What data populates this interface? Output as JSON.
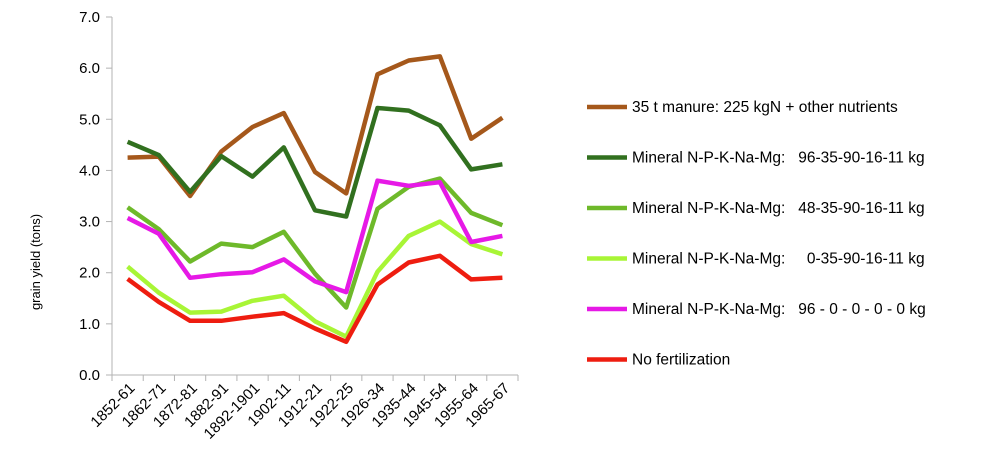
{
  "chart_data": {
    "type": "line",
    "title": "",
    "xlabel": "",
    "ylabel": "grain yield (tons)",
    "ylim": [
      0,
      7
    ],
    "yticks": [
      "0.0",
      "1.0",
      "2.0",
      "3.0",
      "4.0",
      "5.0",
      "6.0",
      "7.0"
    ],
    "grid": false,
    "legend_position": "right",
    "categories": [
      "1852-61",
      "1862-71",
      "1872-81",
      "1882-91",
      "1892-1901",
      "1902-11",
      "1912-21",
      "1922-25",
      "1926-34",
      "1935-44",
      "1945-54",
      "1955-64",
      "1965-67"
    ],
    "series": [
      {
        "name": "35 t manure: 225 kgN + other nutrients",
        "color": "#a5581b",
        "values": [
          4.25,
          4.27,
          3.5,
          4.37,
          4.85,
          5.12,
          3.97,
          3.55,
          5.88,
          6.15,
          6.23,
          4.62,
          5.03
        ]
      },
      {
        "name": "Mineral N-P-K-Na-Mg:   96-35-90-16-11 kg",
        "color": "#31701f",
        "values": [
          4.56,
          4.3,
          3.58,
          4.28,
          3.88,
          4.45,
          3.22,
          3.1,
          5.22,
          5.17,
          4.88,
          4.02,
          4.12
        ]
      },
      {
        "name": "Mineral N-P-K-Na-Mg:   48-35-90-16-11 kg",
        "color": "#6eb92a",
        "values": [
          3.28,
          2.85,
          2.22,
          2.57,
          2.5,
          2.8,
          1.98,
          1.32,
          3.25,
          3.68,
          3.84,
          3.17,
          2.93
        ]
      },
      {
        "name": "Mineral N-P-K-Na-Mg:     0-35-90-16-11 kg",
        "color": "#a8f536",
        "values": [
          2.12,
          1.61,
          1.22,
          1.24,
          1.45,
          1.55,
          1.05,
          0.75,
          2.02,
          2.72,
          3.0,
          2.56,
          2.36
        ]
      },
      {
        "name": "Mineral N-P-K-Na-Mg:   96 - 0 - 0 - 0 - 0 kg",
        "color": "#e619e6",
        "values": [
          3.07,
          2.76,
          1.9,
          1.97,
          2.01,
          2.26,
          1.83,
          1.62,
          3.8,
          3.7,
          3.77,
          2.6,
          2.72
        ]
      },
      {
        "name": "No fertilization",
        "color": "#ee1d10",
        "values": [
          1.88,
          1.43,
          1.06,
          1.06,
          1.14,
          1.21,
          0.91,
          0.65,
          1.77,
          2.2,
          2.33,
          1.87,
          1.9
        ]
      }
    ]
  }
}
